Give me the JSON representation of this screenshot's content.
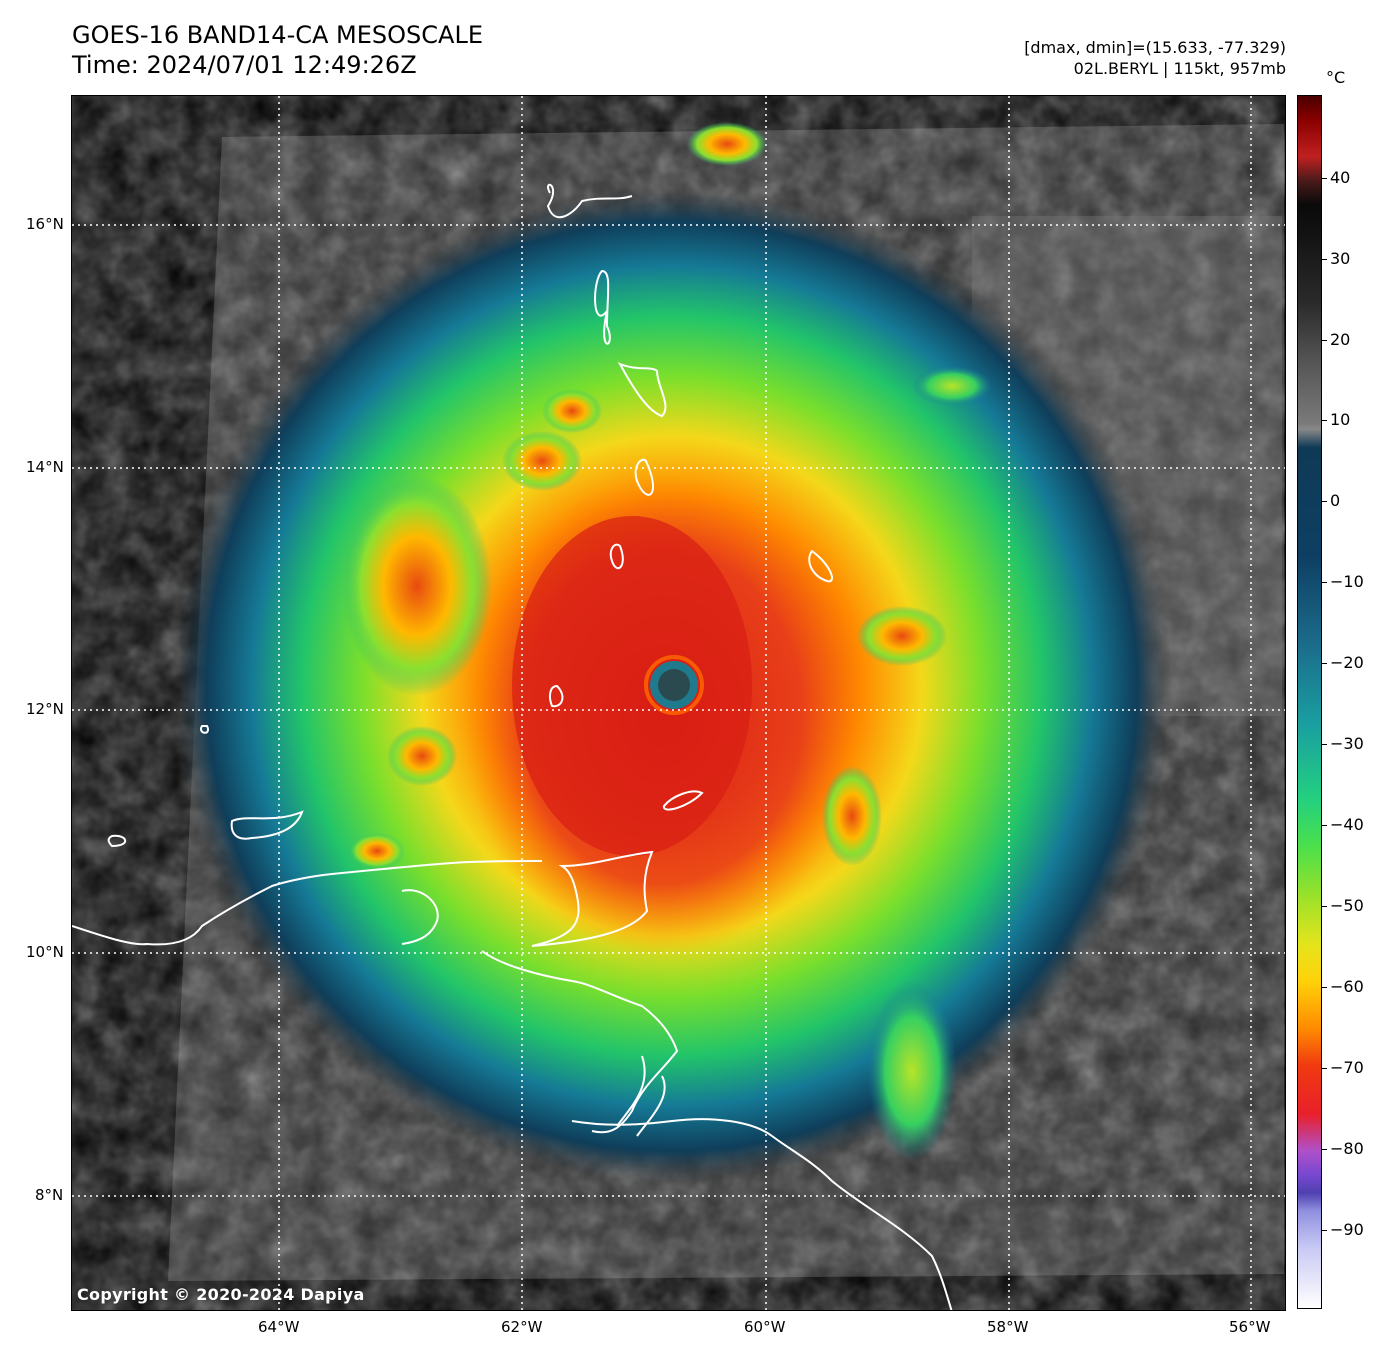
{
  "header": {
    "title_line1": "GOES-16 BAND14-CA MESOSCALE",
    "title_line2": "Time: 2024/07/01 12:49:26Z",
    "meta_line1": "[dmax, dmin]=(15.633, -77.329)",
    "meta_line2": "02L.BERYL | 115kt, 957mb"
  },
  "map": {
    "lat_labels": [
      "16°N",
      "14°N",
      "12°N",
      "10°N",
      "8°N"
    ],
    "lon_labels": [
      "64°W",
      "62°W",
      "60°W",
      "58°W",
      "56°W"
    ],
    "copyright": "Copyright © 2020-2024 Dapiya"
  },
  "colorbar": {
    "unit": "°C",
    "labels": [
      "40",
      "30",
      "20",
      "10",
      "0",
      "−10",
      "−20",
      "−30",
      "−40",
      "−50",
      "−60",
      "−70",
      "−80",
      "−90"
    ]
  }
}
